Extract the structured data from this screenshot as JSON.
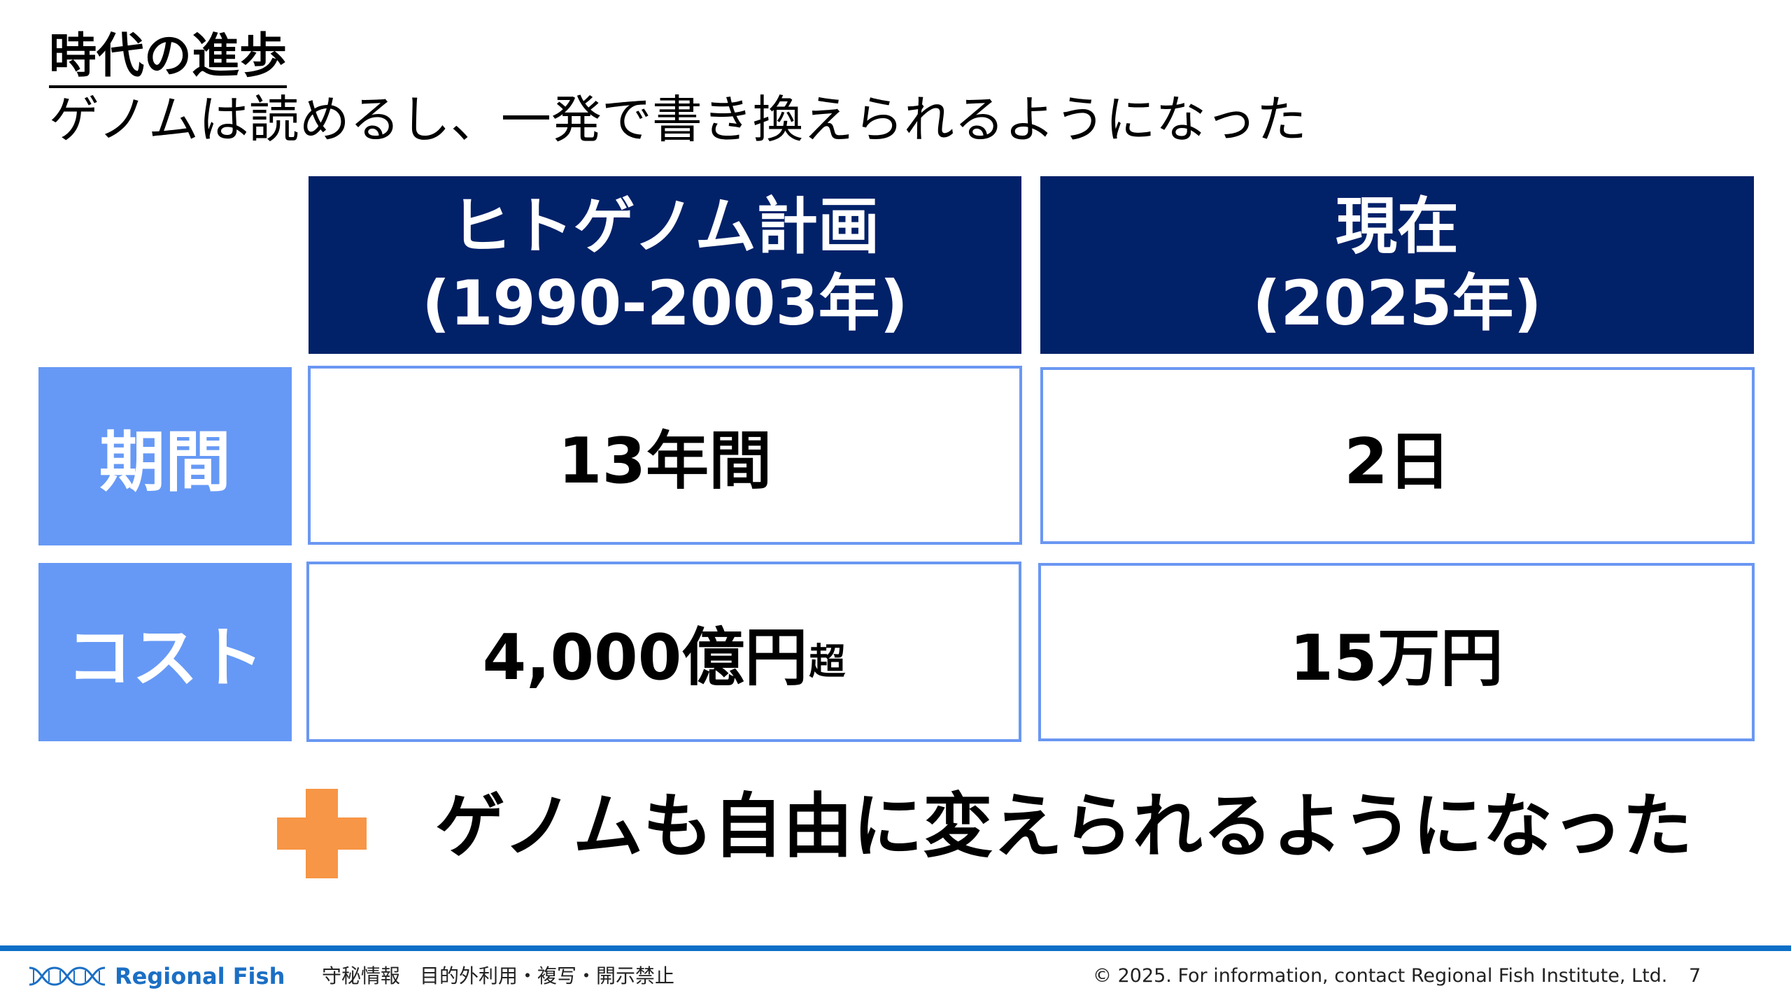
{
  "title": "時代の進歩",
  "subtitle": "ゲノムは読めるし、一発で書き換えられるようになった",
  "table": {
    "columns": [
      {
        "line1": "ヒトゲノム計画",
        "line2": "(1990-2003年)"
      },
      {
        "line1": "現在",
        "line2": "(2025年)"
      }
    ],
    "rows": [
      {
        "label": "期間",
        "values": [
          {
            "main": "13年間",
            "suffix": ""
          },
          {
            "main": "2日",
            "suffix": ""
          }
        ]
      },
      {
        "label": "コスト",
        "values": [
          {
            "main": "4,000億円",
            "suffix": "超"
          },
          {
            "main": "15万円",
            "suffix": ""
          }
        ]
      }
    ]
  },
  "conclusion": "ゲノムも自由に変えられるようになった",
  "footer": {
    "logo_text": "Regional Fish",
    "confidential": "守秘情報　目的外利用・複写・開示禁止",
    "copyright": "© 2025. For information, contact Regional Fish Institute, Ltd.",
    "page_number": "7"
  },
  "colors": {
    "header_navy": "#012169",
    "row_header_blue": "#6699f5",
    "cell_border": "#6a97f2",
    "plus_orange": "#f79646",
    "footer_line": "#0e6fc7"
  },
  "icons": [
    "plus-icon",
    "dna-logo-icon"
  ]
}
